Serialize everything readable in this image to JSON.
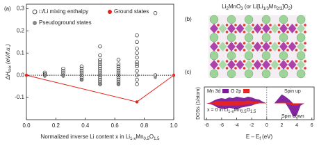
{
  "chart_data": [
    {
      "type": "scatter",
      "panel_label": "(a)",
      "x_label": [
        "Normalized inverse Li content x in Li",
        "1-x",
        "Mn",
        "0.5",
        "O",
        "1.5"
      ],
      "y_label": [
        "ΔH",
        "mix",
        "(eV/f.u.)"
      ],
      "xlim": [
        0,
        1
      ],
      "xticks": [
        {
          "value": 0,
          "label": "0.0"
        },
        0.2,
        0.4,
        0.6,
        0.8,
        {
          "value": 1,
          "label": "1.0"
        }
      ],
      "ylim": [
        -0.2,
        0.32
      ],
      "yticks": [
        -0.1,
        {
          "value": 0,
          "label": "0.0"
        },
        0.1,
        0.2,
        0.3
      ],
      "hline": 0,
      "series": [
        {
          "name": "□/Li mixing enthalpy",
          "color": "#222222",
          "marker": "open",
          "x": [
            0.125,
            0.125,
            0.125,
            0.25,
            0.25,
            0.25,
            0.25,
            0.375,
            0.375,
            0.375,
            0.375,
            0.375,
            0.375,
            0.375,
            0.5,
            0.5,
            0.5,
            0.5,
            0.5,
            0.5,
            0.5,
            0.5,
            0.5,
            0.5,
            0.5,
            0.5,
            0.5,
            0.5,
            0.625,
            0.625,
            0.625,
            0.625,
            0.625,
            0.625,
            0.625,
            0.625,
            0.625,
            0.625,
            0.625,
            0.75,
            0.75,
            0.75,
            0.75,
            0.75,
            0.75,
            0.75,
            0.75,
            0.75,
            0.75,
            0.75,
            0.75,
            0.875,
            0.875
          ],
          "values": [
            0.0,
            0.005,
            0.012,
            0.0,
            0.01,
            0.02,
            0.03,
            -0.02,
            -0.01,
            0.0,
            0.01,
            0.02,
            0.03,
            0.04,
            -0.04,
            -0.03,
            -0.02,
            -0.01,
            0.0,
            0.01,
            0.02,
            0.03,
            0.04,
            0.05,
            0.06,
            0.07,
            0.09,
            0.13,
            -0.04,
            -0.03,
            -0.02,
            -0.01,
            0.0,
            0.01,
            0.02,
            0.03,
            0.04,
            0.05,
            0.07,
            -0.04,
            -0.02,
            0.0,
            0.02,
            0.04,
            0.05,
            0.06,
            0.08,
            0.1,
            0.12,
            0.15,
            0.18,
            0.0,
            0.28
          ]
        },
        {
          "name": "Pseudoground states",
          "color": "#888888",
          "marker": "filled",
          "x": [
            0.125,
            0.25,
            0.375,
            0.5,
            0.625,
            0.875
          ],
          "values": [
            -0.005,
            -0.005,
            -0.02,
            -0.04,
            -0.04,
            -0.01
          ]
        },
        {
          "name": "Ground states",
          "color": "#e8231f",
          "marker": "filled",
          "line": true,
          "x": [
            0,
            0.75,
            1
          ],
          "values": [
            0,
            -0.12,
            0
          ]
        }
      ]
    },
    {
      "type": "dos",
      "panel_label": "(c)",
      "x_label": [
        "E – E",
        "f",
        "(eV)"
      ],
      "y_label": "DOSs (1/atom)",
      "annotation": [
        "x = 0 in Li",
        "1-x",
        "Mn",
        "0.5",
        "O",
        "1.5"
      ],
      "spin_up_label": "Spin up",
      "spin_down_label": "Spin down",
      "xlim": [
        -8.3,
        6.3
      ],
      "xticks": [
        -8,
        -6,
        -4,
        -2,
        0,
        2,
        4,
        6
      ],
      "ylim": [
        -2.2,
        2.2
      ],
      "vline": 0,
      "x": [
        -8,
        -7.5,
        -7,
        -6.5,
        -6,
        -5.5,
        -5,
        -4.5,
        -4,
        -3.5,
        -3,
        -2.5,
        -2,
        -1.5,
        -1,
        -0.5,
        0,
        0.5,
        1,
        1.5,
        2,
        2.5,
        3,
        3.5,
        4,
        4.5,
        5,
        5.5,
        6
      ],
      "series": [
        {
          "name": "Mn 3d",
          "color": "#7b1b9a",
          "values_up": [
            0,
            0.1,
            0.4,
            0.6,
            0.7,
            0.6,
            0.8,
            0.7,
            0.9,
            0.8,
            0.7,
            0.9,
            0.8,
            0.6,
            0.5,
            0.2,
            0,
            0,
            0,
            0.6,
            1.2,
            0.9,
            0.5,
            0,
            0,
            0,
            0,
            0,
            0
          ],
          "values_down": [
            0,
            -0.1,
            -0.3,
            -0.6,
            -0.7,
            -0.8,
            -0.6,
            -0.7,
            -0.8,
            -0.6,
            -0.5,
            -0.4,
            -0.3,
            -0.1,
            0,
            0,
            0,
            0,
            0,
            0,
            0,
            0,
            -0.8,
            -1.8,
            -1.6,
            -0.3,
            0,
            0,
            0
          ]
        },
        {
          "name": "O 2p",
          "color": "#e8231f",
          "values_up": [
            0,
            0.05,
            0.2,
            0.3,
            0.3,
            0.25,
            0.3,
            0.3,
            0.35,
            0.3,
            0.3,
            0.4,
            0.3,
            0.25,
            0.2,
            0.1,
            0,
            0,
            0,
            0.1,
            0.2,
            0.15,
            0.1,
            0,
            0,
            0,
            0,
            0,
            0
          ],
          "values_down": [
            0,
            -0.05,
            -0.15,
            -0.3,
            -0.3,
            -0.35,
            -0.3,
            -0.3,
            -0.3,
            -0.25,
            -0.2,
            -0.15,
            -0.1,
            -0.05,
            0,
            0,
            0,
            0,
            0,
            0,
            0,
            0,
            -0.15,
            -0.3,
            -0.3,
            -0.05,
            0,
            0,
            0
          ]
        }
      ]
    }
  ],
  "structure": {
    "panel_label": "(b)",
    "title": [
      "Li",
      "2",
      "MnO",
      "3",
      " (or Li[Li",
      "1/3",
      "Mn",
      "2/3",
      "]O",
      "2",
      ")"
    ]
  }
}
